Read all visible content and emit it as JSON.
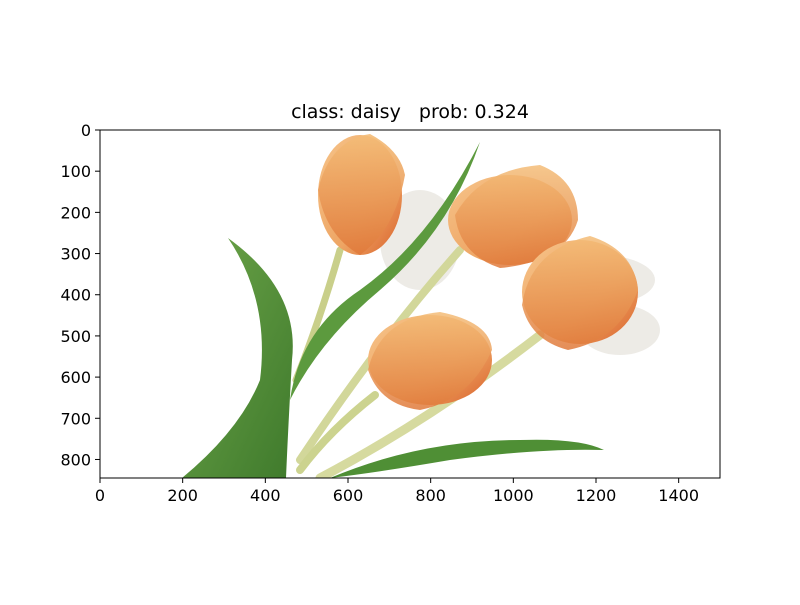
{
  "figure": {
    "title": "class: daisy   prob: 0.324"
  },
  "chart_data": {
    "type": "image",
    "title": "class: daisy   prob: 0.324",
    "prediction": {
      "class": "daisy",
      "prob": 0.324
    },
    "xlabel": "",
    "ylabel": "",
    "xlim": [
      0,
      1500
    ],
    "ylim": [
      845,
      0
    ],
    "xticks": [
      0,
      200,
      400,
      600,
      800,
      1000,
      1200,
      1400
    ],
    "yticks": [
      0,
      100,
      200,
      300,
      400,
      500,
      600,
      700,
      800
    ],
    "image_content": "tulips"
  }
}
